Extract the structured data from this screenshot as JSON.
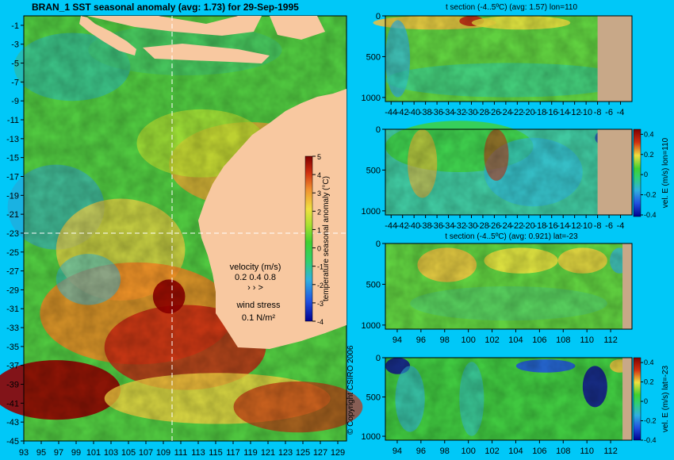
{
  "copyright": "© Copyright CSIRO 2006",
  "colors": {
    "background": "#00c8f8",
    "land": "#f8c8a0",
    "seafloor": "#c8a888"
  },
  "chart_data": [
    {
      "id": "map",
      "type": "heatmap",
      "title": "BRAN_1  SST seasonal anomaly  (avg: 1.73) for 29-Sep-1995",
      "x_ticks": [
        "93",
        "95",
        "97",
        "99",
        "101",
        "103",
        "105",
        "107",
        "109",
        "111",
        "113",
        "115",
        "117",
        "119",
        "121",
        "123",
        "125",
        "127",
        "129"
      ],
      "y_ticks": [
        "-1",
        "-3",
        "-5",
        "-7",
        "-9",
        "-11",
        "-13",
        "-15",
        "-17",
        "-19",
        "-21",
        "-23",
        "-25",
        "-27",
        "-29",
        "-31",
        "-33",
        "-35",
        "-37",
        "-39",
        "-41",
        "-43",
        "-45"
      ],
      "xlim": [
        93,
        130
      ],
      "ylim": [
        -45,
        0
      ],
      "crosshair": {
        "lon": 110,
        "lat": -23
      },
      "colorbar": {
        "label": "temperature seasonal anomaly (°C)",
        "ticks": [
          "5",
          "4",
          "3",
          "2",
          "1",
          "0",
          "-1",
          "-2",
          "-3",
          "-4"
        ],
        "range": [
          -4,
          5
        ]
      },
      "velocity_legend": {
        "title": "velocity (m/s)",
        "values": "0.2 0.4 0.8",
        "arrows": "›  ›  >"
      },
      "wind_legend": {
        "title": "wind stress",
        "value": "0.1 N/m²"
      }
    },
    {
      "id": "p1",
      "type": "heatmap",
      "title": "t section (-4..5ºC) (avg: 1.57) lon=110",
      "x_ticks": [
        "-44",
        "-42",
        "-40",
        "-38",
        "-36",
        "-34",
        "-32",
        "-30",
        "-28",
        "-26",
        "-24",
        "-22",
        "-20",
        "-18",
        "-16",
        "-14",
        "-12",
        "-10",
        "-8",
        "-6",
        "-4"
      ],
      "xlim": [
        -45,
        -2
      ],
      "y_ticks": [
        "0",
        "500",
        "1000"
      ],
      "ylim": [
        1050,
        0
      ],
      "land_from_x": -8
    },
    {
      "id": "p2",
      "type": "heatmap",
      "title": "",
      "x_ticks": [
        "-44",
        "-42",
        "-40",
        "-38",
        "-36",
        "-34",
        "-32",
        "-30",
        "-28",
        "-26",
        "-24",
        "-22",
        "-20",
        "-18",
        "-16",
        "-14",
        "-12",
        "-10",
        "-8",
        "-6",
        "-4"
      ],
      "xlim": [
        -45,
        -2
      ],
      "y_ticks": [
        "0",
        "500",
        "1000"
      ],
      "ylim": [
        1050,
        0
      ],
      "land_from_x": -8,
      "colorbar": {
        "label": "vel. E (m/s) lon=110",
        "ticks": [
          "0.4",
          "0.2",
          "0",
          "-0.2",
          "-0.4"
        ],
        "range": [
          -0.4,
          0.45
        ]
      }
    },
    {
      "id": "p3",
      "type": "heatmap",
      "title": "t section (-4..5ºC) (avg: 0.921) lat=-23",
      "x_ticks": [
        "94",
        "96",
        "98",
        "100",
        "102",
        "104",
        "106",
        "108",
        "110",
        "112"
      ],
      "xlim": [
        93,
        113.8
      ],
      "y_ticks": [
        "0",
        "500",
        "1000"
      ],
      "ylim": [
        1050,
        0
      ],
      "land_from_x": 113
    },
    {
      "id": "p4",
      "type": "heatmap",
      "title": "",
      "x_ticks": [
        "94",
        "96",
        "98",
        "100",
        "102",
        "104",
        "106",
        "108",
        "110",
        "112"
      ],
      "xlim": [
        93,
        113.8
      ],
      "y_ticks": [
        "0",
        "500",
        "1000"
      ],
      "ylim": [
        1050,
        0
      ],
      "land_from_x": 113,
      "colorbar": {
        "label": "vel. E (m/s) lat=-23",
        "ticks": [
          "0.4",
          "0.2",
          "0",
          "-0.2",
          "-0.4"
        ],
        "range": [
          -0.4,
          0.45
        ]
      }
    }
  ]
}
